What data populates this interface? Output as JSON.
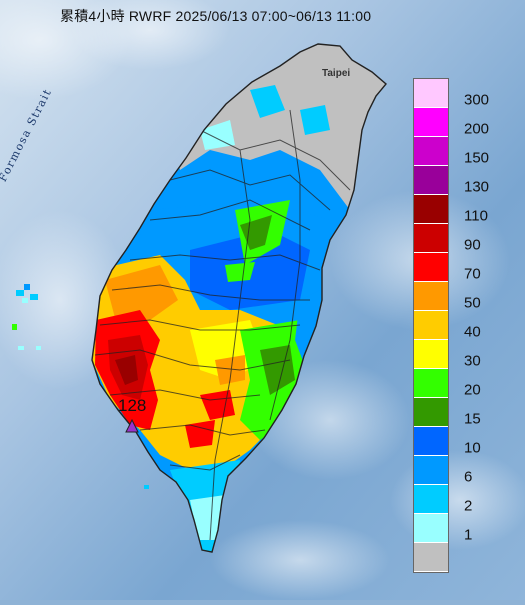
{
  "title": "累積4小時 RWRF 2025/06/13 07:00~06/13 11:00",
  "labels": {
    "strait": "Formosa Strait",
    "taipei": "Taipei",
    "max_value": "128"
  },
  "legend": [
    {
      "label": "300",
      "color": "#ffc8ff"
    },
    {
      "label": "200",
      "color": "#ff00ff"
    },
    {
      "label": "150",
      "color": "#cc00cc"
    },
    {
      "label": "130",
      "color": "#99009a"
    },
    {
      "label": "110",
      "color": "#990000"
    },
    {
      "label": "90",
      "color": "#cc0000"
    },
    {
      "label": "70",
      "color": "#ff0000"
    },
    {
      "label": "50",
      "color": "#ff9900"
    },
    {
      "label": "40",
      "color": "#ffcc00"
    },
    {
      "label": "30",
      "color": "#ffff00"
    },
    {
      "label": "20",
      "color": "#33ff00"
    },
    {
      "label": "15",
      "color": "#339900"
    },
    {
      "label": "10",
      "color": "#0066ff"
    },
    {
      "label": "6",
      "color": "#0099ff"
    },
    {
      "label": "2",
      "color": "#00ccff"
    },
    {
      "label": "1",
      "color": "#99ffff"
    },
    {
      "label": "",
      "color": "#c0c0c0"
    }
  ],
  "colors": {
    "sea_light": "#c5d8ea",
    "sea_dark": "#6f9cc8",
    "max_marker": "#9933cc"
  }
}
